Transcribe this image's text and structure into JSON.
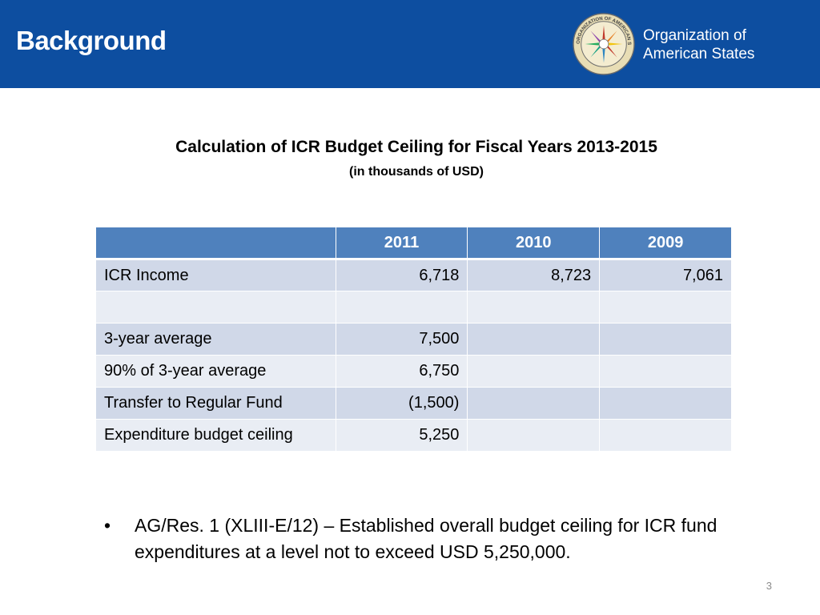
{
  "slide": {
    "title": "Background",
    "page_number": "3"
  },
  "organization": {
    "line1": "Organization of",
    "line2": "American States",
    "seal_icon": "oas-seal-icon",
    "seal_text": "ORGANIZATION OF AMERICAN STATES"
  },
  "table": {
    "title": "Calculation of ICR Budget Ceiling for Fiscal Years 2013-2015",
    "subtitle": "(in thousands of USD)",
    "headers": [
      "",
      "2011",
      "2010",
      "2009"
    ],
    "rows": [
      {
        "label": "ICR Income",
        "c2011": "6,718",
        "c2010": "8,723",
        "c2009": "7,061"
      },
      {
        "label": "",
        "c2011": "",
        "c2010": "",
        "c2009": ""
      },
      {
        "label": "3-year average",
        "c2011": "7,500",
        "c2010": "",
        "c2009": ""
      },
      {
        "label": "90% of 3-year average",
        "c2011": "6,750",
        "c2010": "",
        "c2009": ""
      },
      {
        "label": "Transfer to Regular Fund",
        "c2011": "(1,500)",
        "c2010": "",
        "c2009": ""
      },
      {
        "label": "Expenditure budget ceiling",
        "c2011": "5,250",
        "c2010": "",
        "c2009": ""
      }
    ]
  },
  "bullets": [
    {
      "marker": "•",
      "text": "AG/Res. 1 (XLIII-E/12) – Established overall budget ceiling for ICR fund expenditures at a level not to exceed USD 5,250,000."
    }
  ],
  "colors": {
    "header_blue": "#0d4ea0",
    "table_header": "#4f81bd",
    "row_dark": "#d0d8e8",
    "row_light": "#e9edf4"
  }
}
